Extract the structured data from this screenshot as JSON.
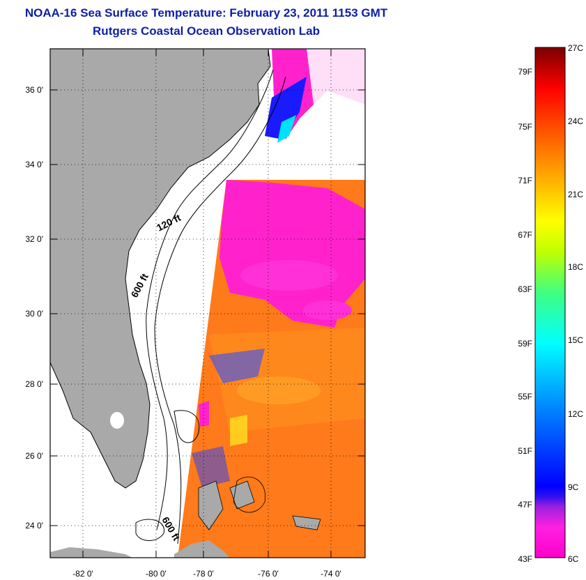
{
  "title": {
    "line1": "NOAA-16 Sea Surface Temperature:  February 23, 2011 1153 GMT",
    "line2": "Rutgers Coastal Ocean Observation Lab"
  },
  "map": {
    "lat_labels": [
      "36 0'",
      "34 0'",
      "32 0'",
      "30 0'",
      "28 0'",
      "26 0'",
      "24 0'"
    ],
    "lon_labels": [
      "-82 0'",
      "-80 0'",
      "-78 0'",
      "-76 0'",
      "-74 0'"
    ],
    "contour_labels": [
      "120 ft",
      "600 ft",
      "600 ft"
    ]
  },
  "colorbar": {
    "fahrenheit": [
      "79F",
      "75F",
      "71F",
      "67F",
      "63F",
      "59F",
      "55F",
      "51F",
      "47F",
      "43F"
    ],
    "celsius": [
      "27C",
      "24C",
      "21C",
      "18C",
      "15C",
      "12C",
      "9C",
      "6C"
    ]
  },
  "colors": {
    "title": "#0b1fa8",
    "land": "#a9a9a9",
    "cloud": "#ff22cc",
    "warm_water": "#ff7a1a"
  }
}
